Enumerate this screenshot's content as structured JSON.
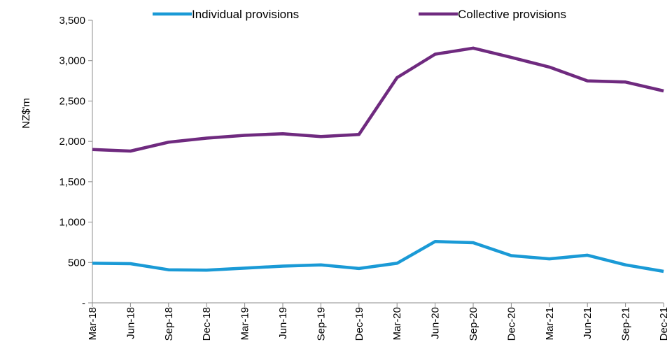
{
  "chart_data": {
    "type": "line",
    "categories": [
      "Mar-18",
      "Jun-18",
      "Sep-18",
      "Dec-18",
      "Mar-19",
      "Jun-19",
      "Sep-19",
      "Dec-19",
      "Mar-20",
      "Jun-20",
      "Sep-20",
      "Dec-20",
      "Mar-21",
      "Jun-21",
      "Sep-21",
      "Dec-21"
    ],
    "series": [
      {
        "name": "Individual provisions",
        "color": "#1a9ad6",
        "values": [
          490,
          485,
          410,
          405,
          430,
          455,
          470,
          425,
          490,
          760,
          745,
          585,
          545,
          590,
          470,
          390
        ]
      },
      {
        "name": "Collective provisions",
        "color": "#6f2a7f",
        "values": [
          1900,
          1880,
          1990,
          2040,
          2075,
          2095,
          2060,
          2085,
          2790,
          3080,
          3155,
          3040,
          2920,
          2750,
          2735,
          2625
        ]
      }
    ],
    "ylabel": "NZ$'m",
    "ylim": [
      0,
      3500
    ],
    "yticks": [
      0,
      500,
      1000,
      1500,
      2000,
      2500,
      3000,
      3500
    ],
    "ytick_labels": [
      "-",
      "500",
      "1,000",
      "1,500",
      "2,000",
      "2,500",
      "3,000",
      "3,500"
    ],
    "grid": false,
    "legend_position": "top"
  }
}
